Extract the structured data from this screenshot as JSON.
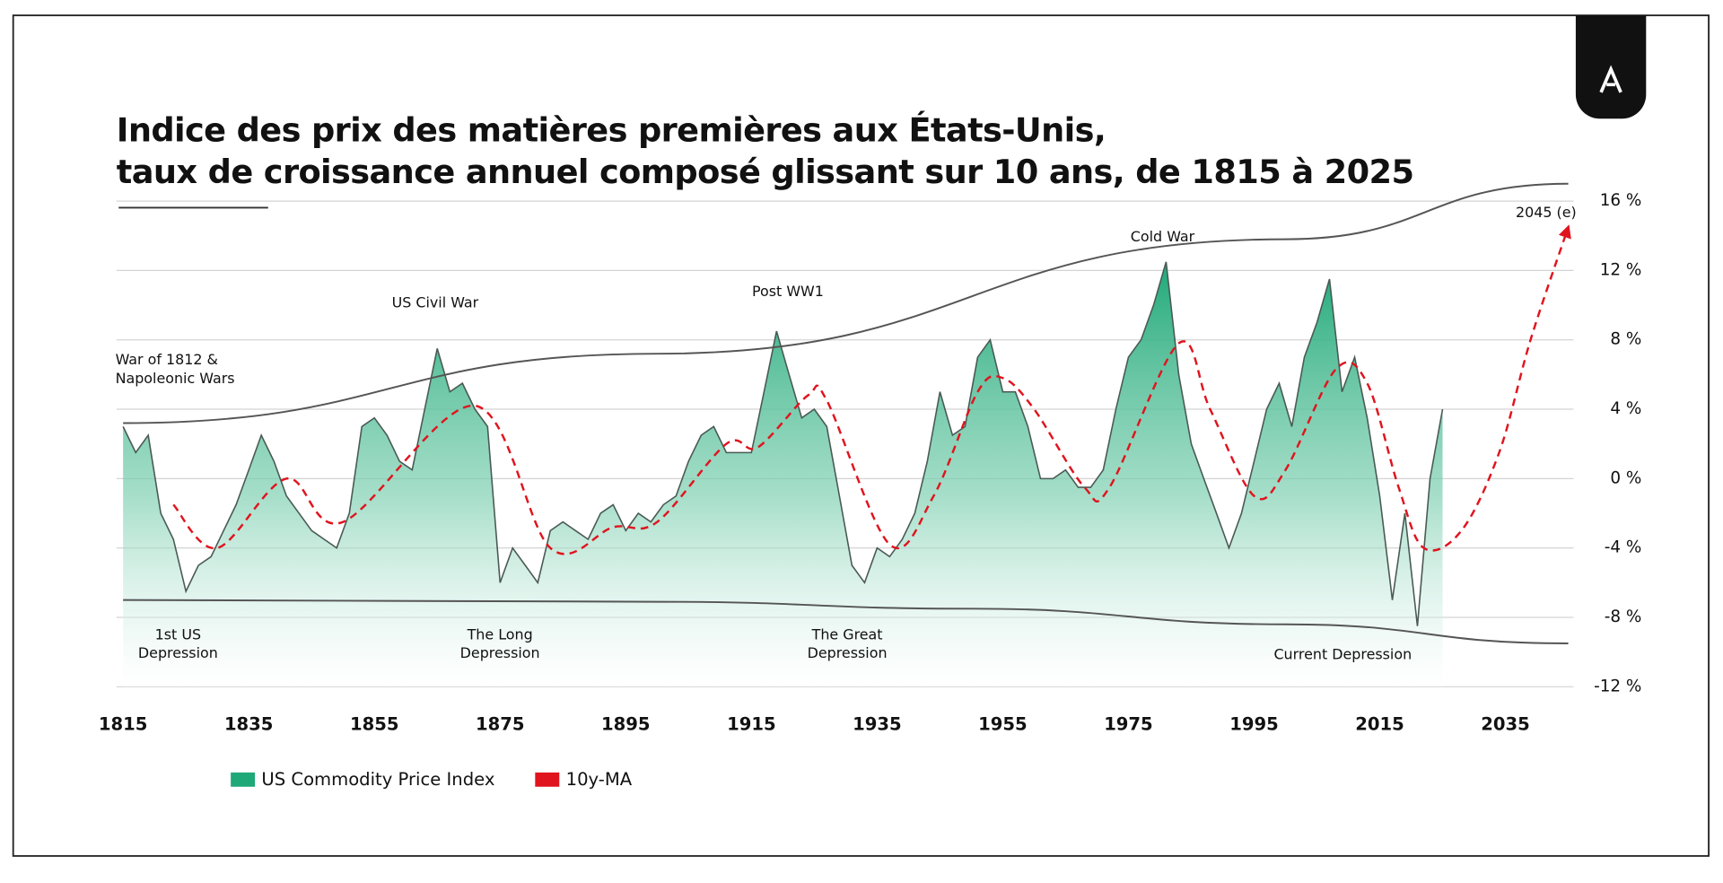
{
  "chart_data": {
    "type": "area-line",
    "title_lines": [
      "Indice des prix des matières premières aux États-Unis,",
      "taux de croissance annuel composé glissant sur 10 ans, de 1815 à 2025"
    ],
    "xlim": [
      1814,
      2046
    ],
    "xticks": [
      1815,
      1835,
      1855,
      1875,
      1895,
      1915,
      1935,
      1955,
      1975,
      1995,
      2015,
      2035
    ],
    "ylim": [
      -12,
      16
    ],
    "yticks": [
      {
        "value": 16,
        "label": "16 %"
      },
      {
        "value": 12,
        "label": "12 %"
      },
      {
        "value": 8,
        "label": "8 %"
      },
      {
        "value": 4,
        "label": "4 %"
      },
      {
        "value": 0,
        "label": "0 %"
      },
      {
        "value": -4,
        "label": "-4 %"
      },
      {
        "value": -8,
        "label": "-8 %"
      },
      {
        "value": -12,
        "label": "-12 %"
      }
    ],
    "grid": true,
    "series": [
      {
        "name": "US Commodity Price Index",
        "color": "#1fa878",
        "x": [
          1815,
          1817,
          1819,
          1821,
          1823,
          1825,
          1827,
          1829,
          1831,
          1833,
          1835,
          1837,
          1839,
          1841,
          1843,
          1845,
          1847,
          1849,
          1851,
          1853,
          1855,
          1857,
          1859,
          1861,
          1863,
          1865,
          1867,
          1869,
          1871,
          1873,
          1875,
          1877,
          1879,
          1881,
          1883,
          1885,
          1887,
          1889,
          1891,
          1893,
          1895,
          1897,
          1899,
          1901,
          1903,
          1905,
          1907,
          1909,
          1911,
          1913,
          1915,
          1917,
          1919,
          1921,
          1923,
          1925,
          1927,
          1929,
          1931,
          1933,
          1935,
          1937,
          1939,
          1941,
          1943,
          1945,
          1947,
          1949,
          1951,
          1953,
          1955,
          1957,
          1959,
          1961,
          1963,
          1965,
          1967,
          1969,
          1971,
          1973,
          1975,
          1977,
          1979,
          1981,
          1983,
          1985,
          1987,
          1989,
          1991,
          1993,
          1995,
          1997,
          1999,
          2001,
          2003,
          2005,
          2007,
          2009,
          2011,
          2013,
          2015,
          2017,
          2019,
          2021,
          2023,
          2025
        ],
        "values": [
          3,
          1.5,
          2.5,
          -2,
          -3.5,
          -6.5,
          -5,
          -4.5,
          -3,
          -1.5,
          0.5,
          2.5,
          1,
          -1,
          -2,
          -3,
          -3.5,
          -4,
          -2,
          3,
          3.5,
          2.5,
          1,
          0.5,
          4,
          7.5,
          5,
          5.5,
          4,
          3,
          -6,
          -4,
          -5,
          -6,
          -3,
          -2.5,
          -3,
          -3.5,
          -2,
          -1.5,
          -3,
          -2,
          -2.5,
          -1.5,
          -1,
          1,
          2.5,
          3,
          1.5,
          1.5,
          1.5,
          5,
          8.5,
          6,
          3.5,
          4,
          3,
          -1,
          -5,
          -6,
          -4,
          -4.5,
          -3.5,
          -2,
          1,
          5,
          2.5,
          3,
          7,
          8,
          5,
          5,
          3,
          0,
          0,
          0.5,
          -0.5,
          -0.5,
          0.5,
          4,
          7,
          8,
          10,
          12.5,
          6,
          2,
          0,
          -2,
          -4,
          -2,
          1,
          4,
          5.5,
          3,
          7,
          9,
          11.5,
          5,
          7,
          3.5,
          -1,
          -7,
          -2,
          -8.5,
          0,
          4
        ]
      },
      {
        "name": "10y-MA",
        "color": "#e0141e",
        "x": [
          1823,
          1830,
          1841,
          1850,
          1871,
          1883,
          1893,
          1900,
          1911,
          1916,
          1924,
          1927,
          1937,
          1944,
          1951,
          1955,
          1960,
          1968,
          1972,
          1983,
          1988,
          1995,
          2000,
          2008,
          2013,
          2018,
          2022,
          2028,
          2034,
          2039,
          2045
        ],
        "values": [
          -1.5,
          -4,
          0,
          -2.5,
          4.2,
          -4,
          -2.8,
          -2.5,
          2,
          1.8,
          4.8,
          4.5,
          -3.8,
          -1,
          5,
          5.8,
          4,
          -0.5,
          -0.5,
          7.8,
          4,
          -1,
          0.5,
          6.3,
          5.5,
          -0.5,
          -4,
          -3,
          1.5,
          8,
          14.5
        ]
      }
    ],
    "trendlines": [
      {
        "x": [
          1815,
          1900,
          2000,
          2045
        ],
        "values": [
          3.2,
          7.2,
          13.8,
          17
        ]
      },
      {
        "x": [
          1815,
          1900,
          1950,
          2000,
          2045
        ],
        "values": [
          -7,
          -7.1,
          -7.5,
          -8.4,
          -9.5
        ]
      }
    ],
    "annotations": [
      {
        "lines": [
          "War of 1812 &",
          "Napoleonic Wars"
        ]
      },
      {
        "lines": [
          "US Civil War"
        ]
      },
      {
        "lines": [
          "Post WW1"
        ]
      },
      {
        "lines": [
          "Cold War"
        ]
      },
      {
        "lines": [
          "1st US",
          "Depression"
        ]
      },
      {
        "lines": [
          "The Long",
          "Depression"
        ]
      },
      {
        "lines": [
          "The Great",
          "Depression"
        ]
      },
      {
        "lines": [
          "Current Depression"
        ]
      },
      {
        "lines": [
          "2045 (e)"
        ]
      }
    ]
  }
}
